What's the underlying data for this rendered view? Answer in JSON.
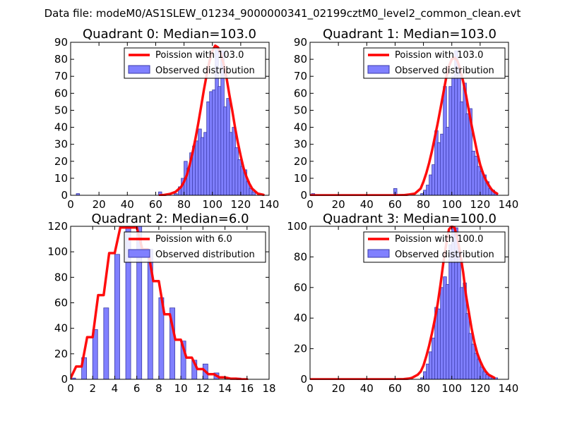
{
  "figure": {
    "suptitle": "Data file: modeM0/AS1SLEW_01234_9000000341_02199cztM0_level2_common_clean.evt"
  },
  "colors": {
    "poisson_line": "#ff0000",
    "hist_fill": "#8080ff",
    "hist_edge": "#3a3aa8",
    "axes": "#000000",
    "legend_border": "#000000"
  },
  "chart_data": [
    {
      "type": "bar",
      "title": "Quadrant 0: Median=103.0",
      "legend": {
        "placement": "top-right",
        "line_label": "Poission with 103.0",
        "bar_label": "Observed distribution"
      },
      "xlim": [
        0,
        140
      ],
      "ylim": [
        0,
        90
      ],
      "xticks": [
        "0",
        "20",
        "40",
        "60",
        "80",
        "100",
        "120",
        "140"
      ],
      "yticks": [
        "0",
        "10",
        "20",
        "30",
        "40",
        "50",
        "60",
        "70",
        "80",
        "90"
      ],
      "bin_width": 2.3,
      "bins": [
        {
          "x": 4,
          "y": 1
        },
        {
          "x": 62,
          "y": 2
        },
        {
          "x": 73,
          "y": 1
        },
        {
          "x": 76,
          "y": 5
        },
        {
          "x": 78,
          "y": 10
        },
        {
          "x": 80,
          "y": 20
        },
        {
          "x": 82,
          "y": 16
        },
        {
          "x": 84,
          "y": 25
        },
        {
          "x": 86,
          "y": 29
        },
        {
          "x": 88,
          "y": 32
        },
        {
          "x": 90,
          "y": 39
        },
        {
          "x": 92,
          "y": 34
        },
        {
          "x": 94,
          "y": 37
        },
        {
          "x": 96,
          "y": 55
        },
        {
          "x": 98,
          "y": 61
        },
        {
          "x": 100,
          "y": 62
        },
        {
          "x": 102,
          "y": 86
        },
        {
          "x": 104,
          "y": 64
        },
        {
          "x": 106,
          "y": 85
        },
        {
          "x": 108,
          "y": 52
        },
        {
          "x": 110,
          "y": 57
        },
        {
          "x": 112,
          "y": 37
        },
        {
          "x": 114,
          "y": 40
        },
        {
          "x": 116,
          "y": 28
        },
        {
          "x": 118,
          "y": 21
        },
        {
          "x": 120,
          "y": 17
        },
        {
          "x": 122,
          "y": 15
        },
        {
          "x": 124,
          "y": 8
        },
        {
          "x": 126,
          "y": 4
        },
        {
          "x": 128,
          "y": 2
        }
      ],
      "poisson": {
        "x": [
          63,
          66,
          70,
          74,
          78,
          80,
          82,
          84,
          86,
          88,
          90,
          92,
          94,
          96,
          98,
          100,
          102,
          104,
          106,
          108,
          110,
          112,
          114,
          116,
          118,
          120,
          122,
          124,
          126,
          128,
          130,
          132,
          136
        ],
        "y": [
          0,
          0.2,
          0.8,
          2,
          5,
          8,
          12,
          18,
          25,
          33,
          42,
          52,
          62,
          71,
          79,
          85,
          88,
          87,
          83,
          77,
          69,
          59,
          50,
          40,
          31,
          23,
          16,
          11,
          7,
          4,
          2.5,
          1,
          0.3
        ]
      }
    },
    {
      "type": "bar",
      "title": "Quadrant 1: Median=103.0",
      "legend": {
        "placement": "top-right",
        "line_label": "Poission with 103.0",
        "bar_label": "Observed distribution"
      },
      "xlim": [
        0,
        140
      ],
      "ylim": [
        0,
        90
      ],
      "xticks": [
        "0",
        "20",
        "40",
        "60",
        "80",
        "100",
        "120",
        "140"
      ],
      "yticks": [
        "0",
        "10",
        "20",
        "30",
        "40",
        "50",
        "60",
        "70",
        "80",
        "90"
      ],
      "bin_width": 2.3,
      "bins": [
        {
          "x": 1,
          "y": 1
        },
        {
          "x": 59,
          "y": 4
        },
        {
          "x": 78,
          "y": 1
        },
        {
          "x": 80,
          "y": 3
        },
        {
          "x": 82,
          "y": 6
        },
        {
          "x": 84,
          "y": 12
        },
        {
          "x": 86,
          "y": 18
        },
        {
          "x": 88,
          "y": 38
        },
        {
          "x": 90,
          "y": 31
        },
        {
          "x": 92,
          "y": 36
        },
        {
          "x": 94,
          "y": 64
        },
        {
          "x": 96,
          "y": 40
        },
        {
          "x": 98,
          "y": 64
        },
        {
          "x": 100,
          "y": 70
        },
        {
          "x": 102,
          "y": 85
        },
        {
          "x": 104,
          "y": 74
        },
        {
          "x": 106,
          "y": 55
        },
        {
          "x": 108,
          "y": 66
        },
        {
          "x": 110,
          "y": 48
        },
        {
          "x": 112,
          "y": 51
        },
        {
          "x": 114,
          "y": 26
        },
        {
          "x": 116,
          "y": 23
        },
        {
          "x": 118,
          "y": 17
        },
        {
          "x": 120,
          "y": 14
        },
        {
          "x": 122,
          "y": 12
        },
        {
          "x": 124,
          "y": 8
        },
        {
          "x": 126,
          "y": 4
        },
        {
          "x": 128,
          "y": 3
        },
        {
          "x": 130,
          "y": 1
        }
      ],
      "poisson": {
        "x": [
          0,
          20,
          40,
          60,
          66,
          70,
          74,
          78,
          80,
          82,
          84,
          86,
          88,
          90,
          92,
          94,
          96,
          98,
          100,
          102,
          104,
          106,
          108,
          110,
          112,
          114,
          116,
          118,
          120,
          122,
          124,
          126,
          128,
          130,
          132
        ],
        "y": [
          0,
          0,
          0,
          0,
          0.1,
          0.5,
          1,
          4,
          8,
          13,
          19,
          26,
          34,
          42,
          51,
          60,
          69,
          76,
          80,
          81,
          79,
          74,
          67,
          59,
          50,
          41,
          33,
          25,
          18,
          13,
          9,
          6,
          3.5,
          2,
          1
        ]
      }
    },
    {
      "type": "bar",
      "title": "Quadrant 2: Median=6.0",
      "legend": {
        "placement": "top-right",
        "line_label": "Poission with 6.0",
        "bar_label": "Observed distribution"
      },
      "xlim": [
        0,
        18
      ],
      "ylim": [
        0,
        120
      ],
      "xticks": [
        "0",
        "2",
        "4",
        "6",
        "8",
        "10",
        "12",
        "14",
        "16",
        "18"
      ],
      "yticks": [
        "0",
        "20",
        "40",
        "60",
        "80",
        "100",
        "120"
      ],
      "bin_width": 0.45,
      "bins": [
        {
          "x": 0,
          "y": 1
        },
        {
          "x": 1,
          "y": 17
        },
        {
          "x": 2,
          "y": 39
        },
        {
          "x": 3,
          "y": 56
        },
        {
          "x": 4,
          "y": 98
        },
        {
          "x": 5,
          "y": 120
        },
        {
          "x": 6,
          "y": 120
        },
        {
          "x": 7,
          "y": 102
        },
        {
          "x": 8,
          "y": 64
        },
        {
          "x": 9,
          "y": 56
        },
        {
          "x": 10,
          "y": 30
        },
        {
          "x": 11,
          "y": 15
        },
        {
          "x": 12,
          "y": 12
        },
        {
          "x": 13,
          "y": 5
        },
        {
          "x": 14,
          "y": 1
        },
        {
          "x": 15,
          "y": 1
        }
      ],
      "poisson": {
        "x": [
          0,
          0.5,
          1,
          1.5,
          2,
          2.5,
          3,
          3.5,
          4,
          4.5,
          5,
          5.5,
          6,
          6.5,
          7,
          7.5,
          8,
          8.5,
          9,
          9.5,
          10,
          10.5,
          11,
          11.5,
          12,
          12.5,
          13,
          13.5,
          14,
          14.5,
          15,
          15.5,
          16
        ],
        "y": [
          1,
          10,
          10,
          33,
          33,
          66,
          66,
          99,
          99,
          119,
          119,
          119,
          119,
          102,
          102,
          77,
          77,
          51,
          51,
          31,
          31,
          17,
          17,
          8,
          8,
          4,
          4,
          1.5,
          1.5,
          0.5,
          0.5,
          0,
          0
        ]
      }
    },
    {
      "type": "bar",
      "title": "Quadrant 3: Median=100.0",
      "legend": {
        "placement": "top-right",
        "line_label": "Poission with 100.0",
        "bar_label": "Observed distribution"
      },
      "xlim": [
        0,
        140
      ],
      "ylim": [
        0,
        100
      ],
      "xticks": [
        "0",
        "20",
        "40",
        "60",
        "80",
        "100",
        "120",
        "140"
      ],
      "yticks": [
        "0",
        "20",
        "40",
        "60",
        "80",
        "100"
      ],
      "bin_width": 2.3,
      "bins": [
        {
          "x": 78,
          "y": 1
        },
        {
          "x": 80,
          "y": 5
        },
        {
          "x": 82,
          "y": 10
        },
        {
          "x": 84,
          "y": 18
        },
        {
          "x": 86,
          "y": 27
        },
        {
          "x": 88,
          "y": 47
        },
        {
          "x": 90,
          "y": 46
        },
        {
          "x": 92,
          "y": 60
        },
        {
          "x": 94,
          "y": 67
        },
        {
          "x": 96,
          "y": 62
        },
        {
          "x": 98,
          "y": 88
        },
        {
          "x": 100,
          "y": 100
        },
        {
          "x": 102,
          "y": 99
        },
        {
          "x": 104,
          "y": 84
        },
        {
          "x": 106,
          "y": 60
        },
        {
          "x": 108,
          "y": 63
        },
        {
          "x": 110,
          "y": 43
        },
        {
          "x": 112,
          "y": 30
        },
        {
          "x": 114,
          "y": 23
        },
        {
          "x": 116,
          "y": 17
        },
        {
          "x": 118,
          "y": 13
        },
        {
          "x": 120,
          "y": 8
        },
        {
          "x": 122,
          "y": 5
        },
        {
          "x": 124,
          "y": 3
        },
        {
          "x": 126,
          "y": 2
        },
        {
          "x": 128,
          "y": 1
        },
        {
          "x": 130,
          "y": 1
        }
      ],
      "poisson": {
        "x": [
          0,
          20,
          40,
          60,
          66,
          70,
          72,
          74,
          76,
          78,
          80,
          82,
          84,
          86,
          88,
          90,
          92,
          94,
          96,
          98,
          100,
          102,
          104,
          106,
          108,
          110,
          112,
          114,
          116,
          118,
          120,
          122,
          124,
          126,
          128,
          130
        ],
        "y": [
          0,
          0,
          0,
          0,
          0.1,
          0.5,
          1,
          2,
          3,
          5,
          9,
          15,
          22,
          30,
          39,
          49,
          62,
          76,
          88,
          98,
          100,
          99,
          92,
          82,
          70,
          55,
          44,
          33,
          24,
          17,
          12,
          8,
          5,
          3,
          2,
          1
        ]
      }
    }
  ]
}
